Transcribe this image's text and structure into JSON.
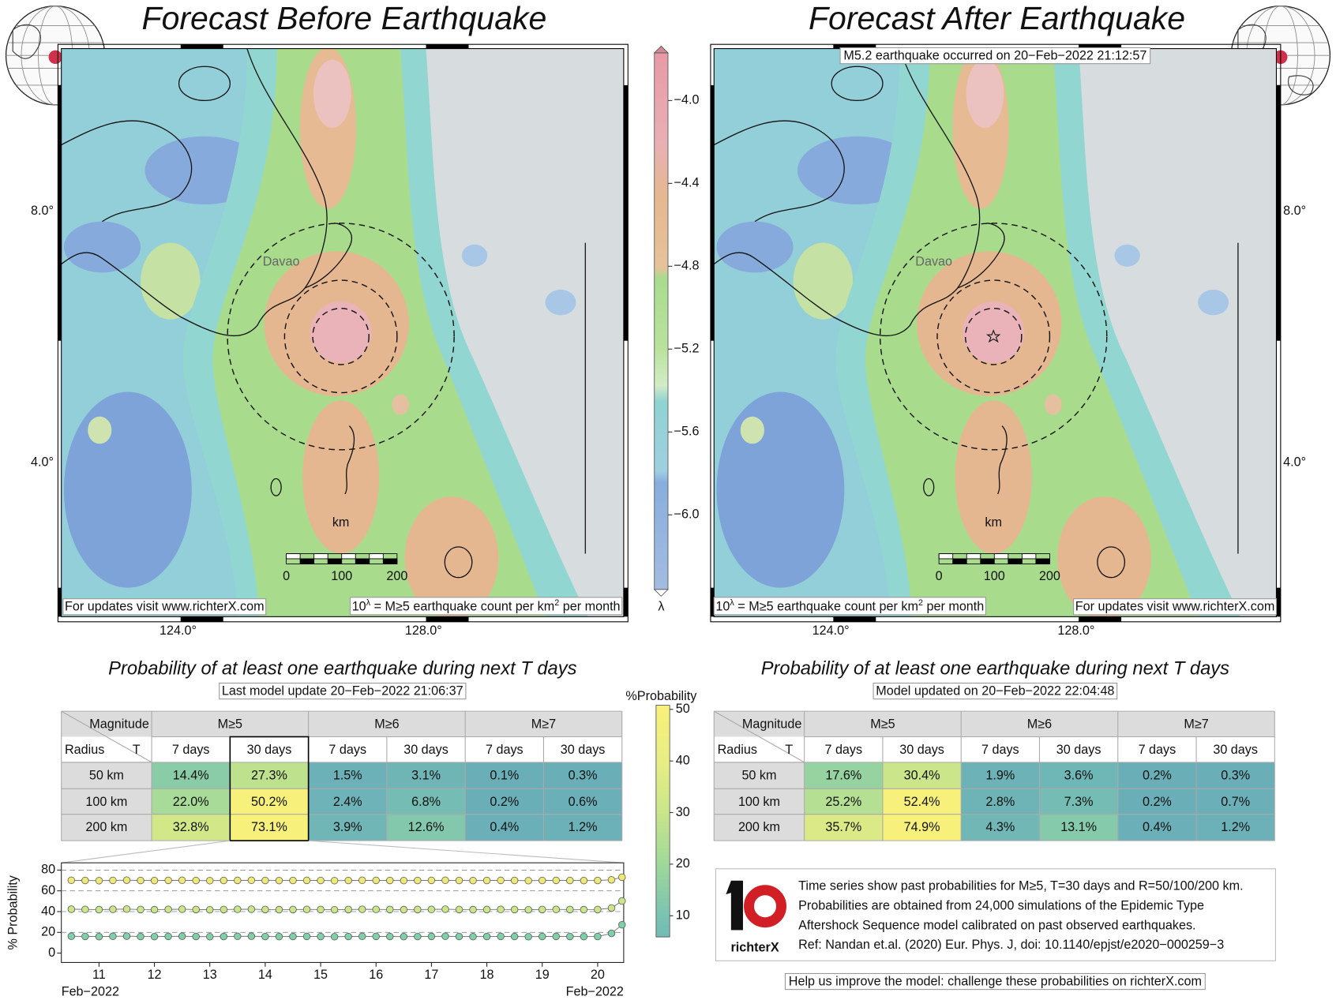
{
  "left": {
    "title": "Forecast Before Earthquake",
    "city": "Davao",
    "lat_labels": [
      "8.0°",
      "4.0°"
    ],
    "lon_labels": [
      "124.0°",
      "128.0°"
    ],
    "scale_unit": "km",
    "scale_labels": [
      "0",
      "100",
      "200"
    ],
    "url_note": "For updates visit www.richterX.com",
    "units_note": [
      "10",
      "λ",
      " = M≥5 earthquake count per km",
      "2",
      " per month"
    ],
    "table": {
      "title": "Probability of at least one earthquake during next T days",
      "subtitle": "Last model update 20−Feb−2022 21:06:37",
      "header": [
        "Magnitude",
        "M≥5",
        "M≥6",
        "M≥7"
      ],
      "subheader": [
        "Radius",
        "T",
        "7 days",
        "30 days",
        "7 days",
        "30 days",
        "7 days",
        "30 days"
      ],
      "rows": [
        [
          "50 km",
          "14.4%",
          "27.3%",
          "1.5%",
          "3.1%",
          "0.1%",
          "0.3%"
        ],
        [
          "100 km",
          "22.0%",
          "50.2%",
          "2.4%",
          "6.8%",
          "0.2%",
          "0.6%"
        ],
        [
          "200 km",
          "32.8%",
          "73.1%",
          "3.9%",
          "12.6%",
          "0.4%",
          "1.2%"
        ]
      ]
    }
  },
  "right": {
    "title": "Forecast After Earthquake",
    "banner": "M5.2 earthquake occurred on 20−Feb−2022 21:12:57",
    "city": "Davao",
    "lat_labels": [
      "8.0°",
      "4.0°"
    ],
    "lon_labels": [
      "124.0°",
      "128.0°"
    ],
    "scale_unit": "km",
    "scale_labels": [
      "0",
      "100",
      "200"
    ],
    "url_note": "For updates visit www.richterX.com",
    "units_note": [
      "10",
      "λ",
      " = M≥5 earthquake count per km",
      "2",
      " per month"
    ],
    "table": {
      "title": "Probability of at least one earthquake during next T days",
      "subtitle": "Model updated on 20−Feb−2022 22:04:48",
      "header": [
        "Magnitude",
        "M≥5",
        "M≥6",
        "M≥7"
      ],
      "subheader": [
        "Radius",
        "T",
        "7 days",
        "30 days",
        "7 days",
        "30 days",
        "7 days",
        "30 days"
      ],
      "rows": [
        [
          "50 km",
          "17.6%",
          "30.4%",
          "1.9%",
          "3.6%",
          "0.2%",
          "0.3%"
        ],
        [
          "100 km",
          "25.2%",
          "52.4%",
          "2.8%",
          "7.3%",
          "0.2%",
          "0.7%"
        ],
        [
          "200 km",
          "35.7%",
          "74.9%",
          "4.3%",
          "13.1%",
          "0.4%",
          "1.2%"
        ]
      ]
    }
  },
  "lambda_colorbar": {
    "label": "λ",
    "lim": [
      -6.36,
      -3.77
    ],
    "ticks": [
      {
        "value": -4.0,
        "label": "−4.0"
      },
      {
        "value": -4.4,
        "label": "−4.4"
      },
      {
        "value": -4.8,
        "label": "−4.8"
      },
      {
        "value": -5.2,
        "label": "−5.2"
      },
      {
        "value": -5.6,
        "label": "−5.6"
      },
      {
        "value": -6.0,
        "label": "−6.0"
      }
    ]
  },
  "probability_colorbar": {
    "label": "%Probability",
    "lim": [
      5.9,
      50.8
    ],
    "ticks": [
      10,
      20,
      30,
      40,
      50
    ]
  },
  "chart_data": {
    "type": "scatter",
    "ylabel": "% Probability",
    "x": [
      10.5,
      10.75,
      11,
      11.25,
      11.5,
      11.75,
      12,
      12.25,
      12.5,
      12.75,
      13,
      13.25,
      13.5,
      13.75,
      14,
      14.25,
      14.5,
      14.75,
      15,
      15.25,
      15.5,
      15.75,
      16,
      16.25,
      16.5,
      16.75,
      17,
      17.25,
      17.5,
      17.75,
      18,
      18.25,
      18.5,
      18.75,
      19,
      19.25,
      19.5,
      19.75,
      20,
      20.25,
      20.44
    ],
    "xlim": [
      10.32,
      20.47
    ],
    "xticks": [
      11,
      12,
      13,
      14,
      15,
      16,
      17,
      18,
      19,
      20
    ],
    "x_end_labels": [
      "Feb−2022",
      "Feb−2022"
    ],
    "ylim": [
      -9,
      87
    ],
    "yticks": [
      0,
      20,
      40,
      60,
      80
    ],
    "grid": true,
    "series": [
      {
        "color": "#eee877",
        "values": [
          70.2,
          70.0,
          69.8,
          70.1,
          70.3,
          70.0,
          69.9,
          70.1,
          70.2,
          70.0,
          69.8,
          70.0,
          70.1,
          70.2,
          70.0,
          69.9,
          70.0,
          70.1,
          70.0,
          69.8,
          70.0,
          70.2,
          70.1,
          70.0,
          69.9,
          70.0,
          70.1,
          70.2,
          70.0,
          69.9,
          70.0,
          70.1,
          70.0,
          69.8,
          70.0,
          70.1,
          70.0,
          69.9,
          70.0,
          70.6,
          73.1
        ]
      },
      {
        "color": "#cbe68a",
        "values": [
          42.3,
          42.1,
          41.9,
          42.2,
          42.4,
          42.0,
          41.9,
          42.1,
          42.3,
          42.0,
          41.8,
          42.0,
          42.2,
          42.3,
          42.0,
          41.9,
          42.0,
          42.1,
          42.0,
          41.8,
          42.0,
          42.2,
          42.1,
          42.0,
          41.9,
          42.0,
          42.1,
          42.3,
          42.0,
          41.9,
          42.0,
          42.1,
          42.0,
          41.8,
          42.0,
          42.1,
          42.0,
          41.9,
          42.0,
          43.5,
          50.2
        ]
      },
      {
        "color": "#7fcfa9",
        "values": [
          16.3,
          16.1,
          15.9,
          16.2,
          16.4,
          16.0,
          15.9,
          16.1,
          16.3,
          16.0,
          15.8,
          16.0,
          16.2,
          16.3,
          16.0,
          15.9,
          16.0,
          16.1,
          16.0,
          15.8,
          16.0,
          16.2,
          16.1,
          16.0,
          15.9,
          16.0,
          16.1,
          16.3,
          16.0,
          15.9,
          16.0,
          16.1,
          16.0,
          15.8,
          16.0,
          16.1,
          16.0,
          15.9,
          16.0,
          19.0,
          27.3
        ]
      }
    ]
  },
  "info": {
    "logo": "richterX",
    "lines": [
      "Time series show past probabilities for M≥5, T=30 days and R=50/100/200 km.",
      "Probabilities are obtained from 24,000 simulations of the Epidemic Type",
      "Aftershock Sequence model calibrated on past observed earthquakes.",
      "Ref: Nandan et.al. (2020) Eur. Phys. J, doi: 10.1140/epjst/e2020−000259−3"
    ]
  },
  "footer": "Help us improve the model: challenge these probabilities on richterX.com"
}
